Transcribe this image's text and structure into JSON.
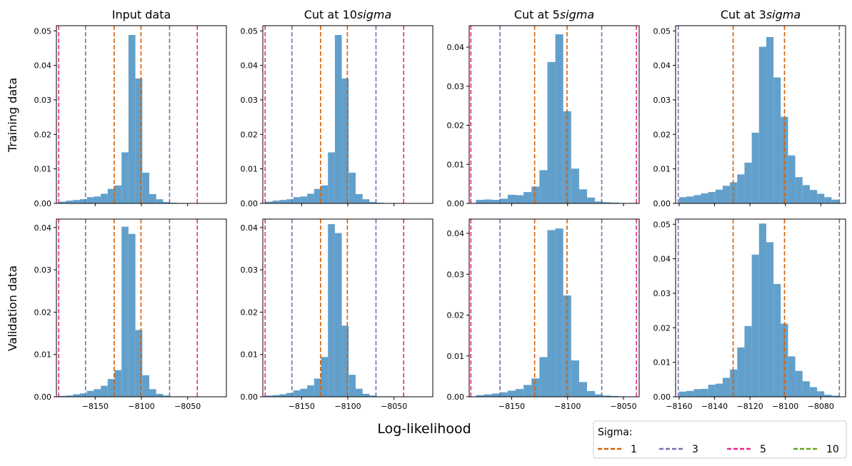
{
  "figure": {
    "xlabel": "Log-likelihood",
    "row_labels": [
      "Training data",
      "Validation data"
    ],
    "col_titles": [
      {
        "text": "Input data",
        "italic_suffix": ""
      },
      {
        "text": "Cut at 10",
        "italic_suffix": "sigma"
      },
      {
        "text": "Cut at 5",
        "italic_suffix": "sigma"
      },
      {
        "text": "Cut at 3",
        "italic_suffix": "sigma"
      }
    ]
  },
  "legend": {
    "title": "Sigma:",
    "entries": [
      {
        "label": "1",
        "color": "#d95f02"
      },
      {
        "label": "3",
        "color": "#7570b3"
      },
      {
        "label": "5",
        "color": "#e7298a"
      },
      {
        "label": "10",
        "color": "#66a61e"
      }
    ]
  },
  "colors": {
    "bars": "#62a0cb"
  },
  "chart_data": [
    {
      "type": "bar",
      "row": 0,
      "col": 0,
      "xlim": [
        -8192,
        -8008
      ],
      "ylim": [
        0,
        0.0515
      ],
      "xticks": [],
      "yticks": [
        0,
        0.01,
        0.02,
        0.03,
        0.04,
        0.05
      ],
      "ytick_labels": [
        "0.00",
        "0.01",
        "0.02",
        "0.03",
        "0.04",
        "0.05"
      ],
      "bins": {
        "start": -8189,
        "width": 7.5,
        "heights": [
          0.0005,
          0.0008,
          0.001,
          0.0012,
          0.0018,
          0.002,
          0.0028,
          0.0042,
          0.0052,
          0.0148,
          0.0488,
          0.0362,
          0.0089,
          0.0027,
          0.0012,
          0.0004,
          0.0002,
          0.0001,
          0.0001,
          0.0001,
          0.0001,
          0.0,
          0.0,
          0.0
        ]
      },
      "vlines": [
        {
          "sigma": "1",
          "x": -8129.5,
          "color": "#d95f02"
        },
        {
          "sigma": "1",
          "x": -8100.5,
          "color": "#d95f02"
        },
        {
          "sigma": "3",
          "x": -8160.5,
          "color": "#7570b3"
        },
        {
          "sigma": "3",
          "x": -8069.5,
          "color": "#7570b3"
        },
        {
          "sigma": "5",
          "x": -8189.5,
          "color": "#e7298a"
        },
        {
          "sigma": "5",
          "x": -8039.5,
          "color": "#e7298a"
        }
      ]
    },
    {
      "type": "bar",
      "row": 0,
      "col": 1,
      "xlim": [
        -8192,
        -8008
      ],
      "ylim": [
        0,
        0.0515
      ],
      "xticks": [],
      "yticks": [
        0,
        0.01,
        0.02,
        0.03,
        0.04,
        0.05
      ],
      "ytick_labels": [
        "0.00",
        "0.01",
        "0.02",
        "0.03",
        "0.04",
        "0.05"
      ],
      "bins": {
        "start": -8189,
        "width": 7.5,
        "heights": [
          0.0005,
          0.0008,
          0.001,
          0.0012,
          0.0018,
          0.002,
          0.0028,
          0.0042,
          0.0052,
          0.0148,
          0.0488,
          0.0362,
          0.0089,
          0.0027,
          0.0012,
          0.0004,
          0.0002,
          0.0001,
          0.0001,
          0.0001,
          0.0001,
          0.0,
          0.0,
          0.0
        ]
      },
      "vlines": [
        {
          "sigma": "1",
          "x": -8129.5,
          "color": "#d95f02"
        },
        {
          "sigma": "1",
          "x": -8100.5,
          "color": "#d95f02"
        },
        {
          "sigma": "3",
          "x": -8160.5,
          "color": "#7570b3"
        },
        {
          "sigma": "3",
          "x": -8069.5,
          "color": "#7570b3"
        },
        {
          "sigma": "5",
          "x": -8189.5,
          "color": "#e7298a"
        },
        {
          "sigma": "5",
          "x": -8039.5,
          "color": "#e7298a"
        }
      ]
    },
    {
      "type": "bar",
      "row": 0,
      "col": 2,
      "xlim": [
        -8188,
        -8036
      ],
      "ylim": [
        0,
        0.0455
      ],
      "xticks": [],
      "yticks": [
        0,
        0.01,
        0.02,
        0.03,
        0.04
      ],
      "ytick_labels": [
        "0.00",
        "0.01",
        "0.02",
        "0.03",
        "0.04"
      ],
      "bins": {
        "start": -8182,
        "width": 7.1,
        "heights": [
          0.0009,
          0.001,
          0.0009,
          0.0012,
          0.0022,
          0.0021,
          0.0029,
          0.0043,
          0.0085,
          0.0362,
          0.0433,
          0.0236,
          0.0089,
          0.0036,
          0.0015,
          0.0005,
          0.0003,
          0.0002,
          0.0001,
          0.0001,
          0.0,
          0.0
        ]
      },
      "vlines": [
        {
          "sigma": "1",
          "x": -8129.5,
          "color": "#d95f02"
        },
        {
          "sigma": "1",
          "x": -8100.5,
          "color": "#d95f02"
        },
        {
          "sigma": "3",
          "x": -8160.5,
          "color": "#7570b3"
        },
        {
          "sigma": "3",
          "x": -8069.5,
          "color": "#7570b3"
        },
        {
          "sigma": "5",
          "x": -8186.5,
          "color": "#e7298a"
        },
        {
          "sigma": "5",
          "x": -8038.5,
          "color": "#e7298a"
        }
      ]
    },
    {
      "type": "bar",
      "row": 0,
      "col": 3,
      "xlim": [
        -8162,
        -8066
      ],
      "ylim": [
        0,
        0.0515
      ],
      "xticks": [],
      "yticks": [
        0,
        0.01,
        0.02,
        0.03,
        0.04,
        0.05
      ],
      "ytick_labels": [
        "0.00",
        "0.01",
        "0.02",
        "0.03",
        "0.04",
        "0.05"
      ],
      "bins": {
        "start": -8160,
        "width": 4.1,
        "heights": [
          0.0018,
          0.002,
          0.0024,
          0.0029,
          0.0033,
          0.004,
          0.0051,
          0.0061,
          0.0084,
          0.0118,
          0.0205,
          0.0454,
          0.0482,
          0.0365,
          0.0251,
          0.0139,
          0.0076,
          0.0053,
          0.0039,
          0.0028,
          0.0018,
          0.0011
        ]
      },
      "vlines": [
        {
          "sigma": "1",
          "x": -8129.5,
          "color": "#d95f02"
        },
        {
          "sigma": "1",
          "x": -8100.5,
          "color": "#d95f02"
        },
        {
          "sigma": "3",
          "x": -8160.5,
          "color": "#7570b3"
        },
        {
          "sigma": "3",
          "x": -8069.5,
          "color": "#7570b3"
        }
      ]
    },
    {
      "type": "bar",
      "row": 1,
      "col": 0,
      "xlim": [
        -8192,
        -8008
      ],
      "ylim": [
        0,
        0.042
      ],
      "xticks": [
        -8150,
        -8100,
        -8050
      ],
      "xtick_labels": [
        "−8150",
        "−8100",
        "−8050"
      ],
      "yticks": [
        0,
        0.01,
        0.02,
        0.03,
        0.04
      ],
      "ytick_labels": [
        "0.00",
        "0.01",
        "0.02",
        "0.03",
        "0.04"
      ],
      "bins": {
        "start": -8189,
        "width": 7.5,
        "heights": [
          0.0002,
          0.0003,
          0.0006,
          0.0008,
          0.0014,
          0.0018,
          0.0026,
          0.0042,
          0.0063,
          0.0402,
          0.0385,
          0.0158,
          0.0051,
          0.0018,
          0.0007,
          0.0003,
          0.0001,
          0.0001,
          0.0,
          0.0,
          0.0,
          0.0,
          0.0,
          0.0
        ]
      },
      "vlines": [
        {
          "sigma": "1",
          "x": -8129.5,
          "color": "#d95f02"
        },
        {
          "sigma": "1",
          "x": -8100.5,
          "color": "#d95f02"
        },
        {
          "sigma": "3",
          "x": -8160.5,
          "color": "#7570b3"
        },
        {
          "sigma": "3",
          "x": -8069.5,
          "color": "#7570b3"
        },
        {
          "sigma": "5",
          "x": -8189.5,
          "color": "#e7298a"
        },
        {
          "sigma": "5",
          "x": -8039.5,
          "color": "#e7298a"
        }
      ]
    },
    {
      "type": "bar",
      "row": 1,
      "col": 1,
      "xlim": [
        -8192,
        -8008
      ],
      "ylim": [
        0,
        0.042
      ],
      "xticks": [
        -8150,
        -8100,
        -8050
      ],
      "xtick_labels": [
        "−8150",
        "−8100",
        "−8050"
      ],
      "yticks": [
        0,
        0.01,
        0.02,
        0.03,
        0.04
      ],
      "ytick_labels": [
        "0.00",
        "0.01",
        "0.02",
        "0.03",
        "0.04"
      ],
      "bins": {
        "start": -8189,
        "width": 7.5,
        "heights": [
          0.0003,
          0.0004,
          0.0006,
          0.0009,
          0.0015,
          0.0019,
          0.0027,
          0.0043,
          0.0094,
          0.0408,
          0.0387,
          0.0168,
          0.0052,
          0.0019,
          0.0007,
          0.0003,
          0.0001,
          0.0001,
          0.0,
          0.0,
          0.0,
          0.0,
          0.0,
          0.0
        ]
      },
      "vlines": [
        {
          "sigma": "1",
          "x": -8129.5,
          "color": "#d95f02"
        },
        {
          "sigma": "1",
          "x": -8100.5,
          "color": "#d95f02"
        },
        {
          "sigma": "3",
          "x": -8160.5,
          "color": "#7570b3"
        },
        {
          "sigma": "3",
          "x": -8069.5,
          "color": "#7570b3"
        },
        {
          "sigma": "5",
          "x": -8189.5,
          "color": "#e7298a"
        },
        {
          "sigma": "5",
          "x": -8039.5,
          "color": "#e7298a"
        }
      ]
    },
    {
      "type": "bar",
      "row": 1,
      "col": 2,
      "xlim": [
        -8188,
        -8036
      ],
      "ylim": [
        0,
        0.0435
      ],
      "xticks": [
        -8150,
        -8100,
        -8050
      ],
      "xtick_labels": [
        "−8150",
        "−8100",
        "−8050"
      ],
      "yticks": [
        0,
        0.01,
        0.02,
        0.03,
        0.04
      ],
      "ytick_labels": [
        "0.00",
        "0.01",
        "0.02",
        "0.03",
        "0.04"
      ],
      "bins": {
        "start": -8182,
        "width": 7.1,
        "heights": [
          0.0004,
          0.0006,
          0.0008,
          0.0011,
          0.0015,
          0.0019,
          0.0029,
          0.0045,
          0.0097,
          0.0408,
          0.0412,
          0.0248,
          0.0089,
          0.0036,
          0.0014,
          0.0006,
          0.0003,
          0.0002,
          0.0001,
          0.0001,
          0.0,
          0.0
        ]
      },
      "vlines": [
        {
          "sigma": "1",
          "x": -8129.5,
          "color": "#d95f02"
        },
        {
          "sigma": "1",
          "x": -8100.5,
          "color": "#d95f02"
        },
        {
          "sigma": "3",
          "x": -8160.5,
          "color": "#7570b3"
        },
        {
          "sigma": "3",
          "x": -8069.5,
          "color": "#7570b3"
        },
        {
          "sigma": "5",
          "x": -8186.5,
          "color": "#e7298a"
        },
        {
          "sigma": "5",
          "x": -8038.5,
          "color": "#e7298a"
        }
      ]
    },
    {
      "type": "bar",
      "row": 1,
      "col": 3,
      "xlim": [
        -8162,
        -8066
      ],
      "ylim": [
        0,
        0.0515
      ],
      "xticks": [
        -8160,
        -8140,
        -8120,
        -8100,
        -8080
      ],
      "xtick_labels": [
        "−8160",
        "−8140",
        "−8120",
        "−8100",
        "−8080"
      ],
      "yticks": [
        0,
        0.01,
        0.02,
        0.03,
        0.04,
        0.05
      ],
      "ytick_labels": [
        "0.00",
        "0.01",
        "0.02",
        "0.03",
        "0.04",
        "0.05"
      ],
      "bins": {
        "start": -8160,
        "width": 4.1,
        "heights": [
          0.0015,
          0.0017,
          0.0022,
          0.0023,
          0.0035,
          0.0038,
          0.0055,
          0.0079,
          0.0143,
          0.0205,
          0.0412,
          0.0502,
          0.0448,
          0.0327,
          0.0212,
          0.0117,
          0.0075,
          0.0045,
          0.0028,
          0.0016,
          0.0006,
          0.0003
        ]
      },
      "vlines": [
        {
          "sigma": "1",
          "x": -8129.5,
          "color": "#d95f02"
        },
        {
          "sigma": "1",
          "x": -8100.5,
          "color": "#d95f02"
        },
        {
          "sigma": "3",
          "x": -8160.5,
          "color": "#7570b3"
        },
        {
          "sigma": "3",
          "x": -8069.5,
          "color": "#7570b3"
        }
      ]
    }
  ]
}
